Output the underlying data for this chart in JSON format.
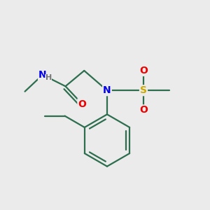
{
  "background_color": "#ebebeb",
  "bond_color": "#2d6e4e",
  "atom_colors": {
    "N": "#0000ee",
    "O": "#ee0000",
    "S": "#ccaa00",
    "H": "#777777"
  },
  "figsize": [
    3.0,
    3.0
  ],
  "dpi": 100,
  "lw": 1.6
}
